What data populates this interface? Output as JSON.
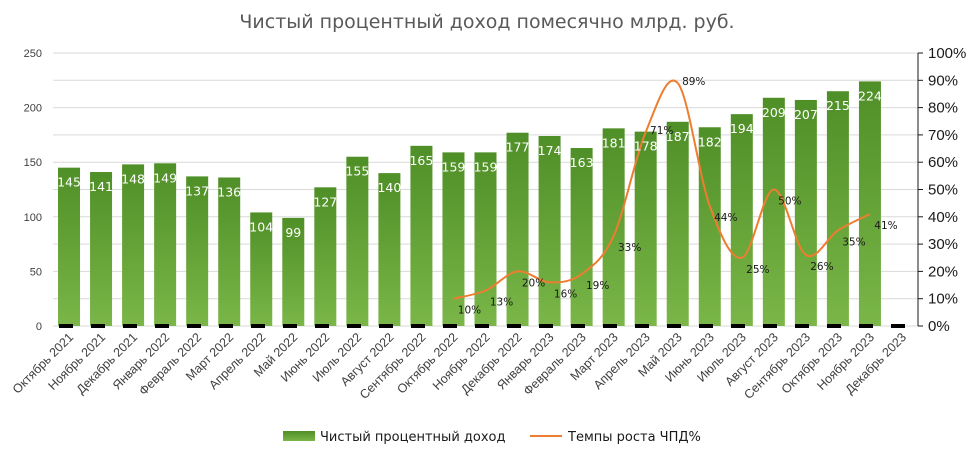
{
  "chart_data": {
    "type": "bar",
    "title": "Чистый процентный доход помесячно млрд. руб.",
    "categories": [
      "Октябрь 2021",
      "Ноябрь 2021",
      "Декабрь 2021",
      "Январь 2022",
      "Февраль 2022",
      "Март 2022",
      "Апрель 2022",
      "Май 2022",
      "Июнь 2022",
      "Июль 2022",
      "Август 2022",
      "Сентябрь 2022",
      "Октябрь 2022",
      "Ноябрь 2022",
      "Декабрь 2022",
      "Январь 2023",
      "Февраль 2023",
      "Март 2023",
      "Апрель 2023",
      "Май 2023",
      "Июнь 2023",
      "Июль 2023",
      "Август 2023",
      "Сентябрь 2023",
      "Октябрь 2023",
      "Ноябрь 2023",
      "Декабрь 2023"
    ],
    "series": [
      {
        "name": "Чистый процентный доход",
        "type": "bar",
        "axis": "left",
        "color": "#5a9a2e",
        "values": [
          145,
          141,
          148,
          149,
          137,
          136,
          104,
          99,
          127,
          155,
          140,
          165,
          159,
          159,
          177,
          174,
          163,
          181,
          178,
          187,
          182,
          194,
          209,
          207,
          215,
          224,
          null
        ]
      },
      {
        "name": "Темпы роста ЧПД%",
        "type": "line",
        "axis": "right",
        "color": "#ed7d31",
        "values": [
          null,
          null,
          null,
          null,
          null,
          null,
          null,
          null,
          null,
          null,
          null,
          null,
          10,
          13,
          20,
          16,
          19,
          33,
          71,
          89,
          44,
          25,
          50,
          26,
          35,
          41,
          null
        ],
        "labels": [
          null,
          null,
          null,
          null,
          null,
          null,
          null,
          null,
          null,
          null,
          null,
          null,
          "10%",
          "13%",
          "20%",
          "16%",
          "19%",
          "33%",
          "71%",
          "89%",
          "44%",
          "25%",
          "50%",
          "26%",
          "35%",
          "41%",
          null
        ]
      }
    ],
    "y_left": {
      "min": 0,
      "max": 250,
      "ticks": [
        0,
        50,
        100,
        150,
        200,
        250
      ]
    },
    "y_right": {
      "min": 0,
      "max": 100,
      "ticks": [
        "0%",
        "10%",
        "20%",
        "30%",
        "40%",
        "50%",
        "60%",
        "70%",
        "80%",
        "90%",
        "100%"
      ]
    },
    "xlabel": "",
    "ylabel": "",
    "grid": true,
    "legend": "bottom"
  }
}
